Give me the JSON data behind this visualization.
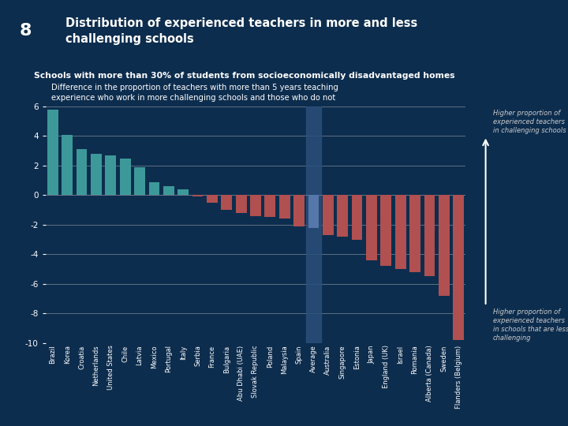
{
  "title": "Distribution of experienced teachers in more and less\nchallenging schools",
  "slide_number": "8",
  "subtitle": "Schools with more than 30% of students from socioeconomically disadvantaged homes",
  "chart_subtitle": "Difference in the proportion of teachers with more than 5 years teaching\nexperience who work in more challenging schools and those who do not",
  "background_color": "#0d2d4e",
  "header_color": "#8b2020",
  "categories": [
    "Brazil",
    "Korea",
    "Croatia",
    "Netherlands",
    "United States",
    "Chile",
    "Latvia",
    "Mexico",
    "Portugal",
    "Italy",
    "Serbia",
    "France",
    "Bulgaria",
    "Abu Dhabi (UAE)",
    "Slovak Republic",
    "Poland",
    "Malaysia",
    "Spain",
    "Average",
    "Australia",
    "Singapore",
    "Estonia",
    "Japan",
    "England (UK)",
    "Israel",
    "Romania",
    "Alberta (Canada)",
    "Sweden",
    "Flanders (Belgium)"
  ],
  "values": [
    5.8,
    4.1,
    3.1,
    2.8,
    2.7,
    2.5,
    1.9,
    0.9,
    0.6,
    0.4,
    -0.1,
    -0.5,
    -1.0,
    -1.2,
    -1.4,
    -1.5,
    -1.6,
    -2.1,
    -2.2,
    -2.7,
    -2.8,
    -3.0,
    -4.4,
    -4.8,
    -5.0,
    -5.2,
    -5.5,
    -6.8,
    -9.8
  ],
  "bar_colors_positive": "#3d9999",
  "bar_colors_negative": "#b05050",
  "average_bar_color": "#5577aa",
  "average_index": 18,
  "average_highlight_color": "#2a4f7a",
  "ylim": [
    -10,
    6
  ],
  "yticks": [
    -10,
    -8,
    -6,
    -4,
    -2,
    0,
    2,
    4,
    6
  ],
  "grid_color": "#6a7a8a",
  "annotation_top": "Higher proportion of\nexperienced teachers\nin challenging schools",
  "annotation_bottom": "Higher proportion of\nexperienced teachers\nin schools that are less\nchallenging",
  "annotation_color": "#cccccc",
  "arrow_color": "#ffffff"
}
